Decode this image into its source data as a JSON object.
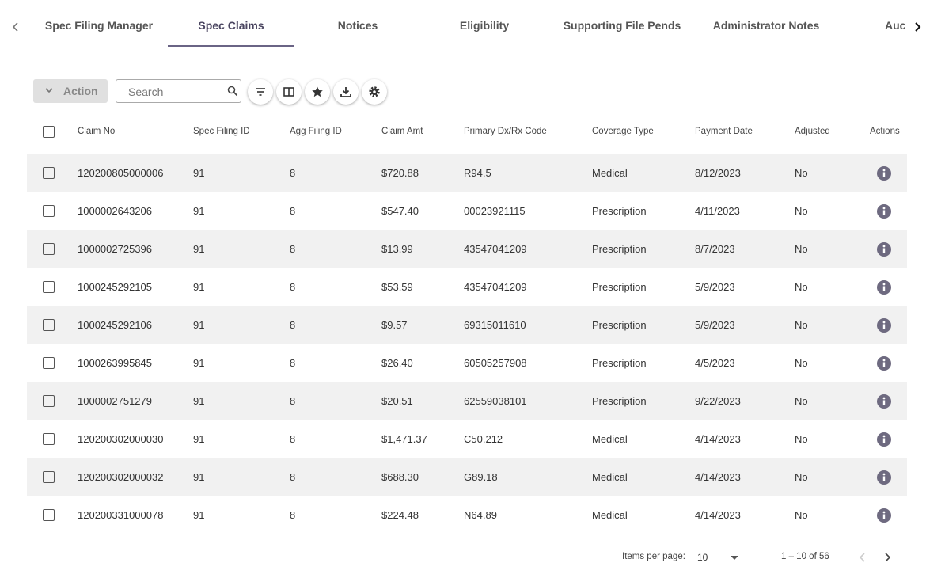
{
  "tabs": [
    "Spec Filing Manager",
    "Spec Claims",
    "Notices",
    "Eligibility",
    "Supporting File Pends",
    "Administrator Notes",
    "Auc"
  ],
  "toolbar": {
    "action": "Action",
    "search_placeholder": "Search"
  },
  "table": {
    "columns": [
      "Claim No",
      "Spec Filing ID",
      "Agg Filing ID",
      "Claim Amt",
      "Primary Dx/Rx Code",
      "Coverage Type",
      "Payment Date",
      "Adjusted",
      "Actions"
    ],
    "rows": [
      [
        "120200805000006",
        "91",
        "8",
        "$720.88",
        "R94.5",
        "Medical",
        "8/12/2023",
        "No"
      ],
      [
        "1000002643206",
        "91",
        "8",
        "$547.40",
        "00023921115",
        "Prescription",
        "4/11/2023",
        "No"
      ],
      [
        "1000002725396",
        "91",
        "8",
        "$13.99",
        "43547041209",
        "Prescription",
        "8/7/2023",
        "No"
      ],
      [
        "1000245292105",
        "91",
        "8",
        "$53.59",
        "43547041209",
        "Prescription",
        "5/9/2023",
        "No"
      ],
      [
        "1000245292106",
        "91",
        "8",
        "$9.57",
        "69315011610",
        "Prescription",
        "5/9/2023",
        "No"
      ],
      [
        "1000263995845",
        "91",
        "8",
        "$26.40",
        "60505257908",
        "Prescription",
        "4/5/2023",
        "No"
      ],
      [
        "1000002751279",
        "91",
        "8",
        "$20.51",
        "62559038101",
        "Prescription",
        "9/22/2023",
        "No"
      ],
      [
        "120200302000030",
        "91",
        "8",
        "$1,471.37",
        "C50.212",
        "Medical",
        "4/14/2023",
        "No"
      ],
      [
        "120200302000032",
        "91",
        "8",
        "$688.30",
        "G89.18",
        "Medical",
        "4/14/2023",
        "No"
      ],
      [
        "120200331000078",
        "91",
        "8",
        "$224.48",
        "N64.89",
        "Medical",
        "4/14/2023",
        "No"
      ]
    ]
  },
  "pagination": {
    "items_per_page_label": "Items per page:",
    "page_size": "10",
    "range": "1 – 10 of 56"
  }
}
